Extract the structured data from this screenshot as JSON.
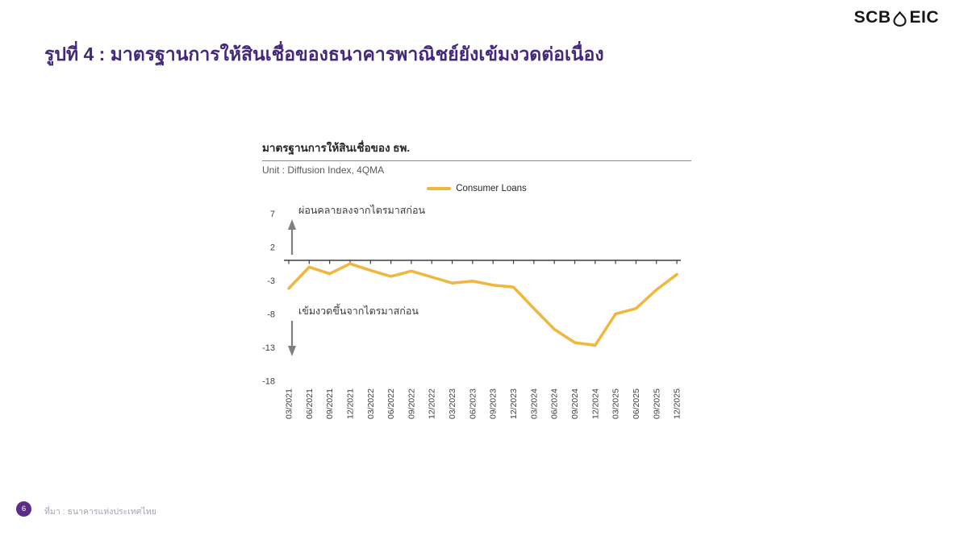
{
  "header": {
    "logo_left": "SCB",
    "logo_right": "EIC"
  },
  "figure_title": "รูปที่ 4 : มาตรฐานการให้สินเชื่อของธนาคารพาณิชย์ยังเข้มงวดต่อเนื่อง",
  "chart": {
    "title": "มาตรฐานการให้สินเชื่อของ ธพ.",
    "unit": "Unit : Diffusion Index, 4QMA",
    "legend_label": "Consumer Loans",
    "annotation_up": "ผ่อนคลายลงจากไตรมาสก่อน",
    "annotation_down": "เข้มงวดขึ้นจากไตรมาสก่อน",
    "line_color": "#F0B63E",
    "axis_color": "#3f3f3f",
    "arrow_color": "#7f7f7f"
  },
  "chart_data": {
    "type": "line",
    "title": "มาตรฐานการให้สินเชื่อของ ธพ.",
    "unit": "Unit : Diffusion Index, 4QMA",
    "categories": [
      "03/2021",
      "06/2021",
      "09/2021",
      "12/2021",
      "03/2022",
      "06/2022",
      "09/2022",
      "12/2022",
      "03/2023",
      "06/2023",
      "09/2023",
      "12/2023",
      "03/2024",
      "06/2024",
      "09/2024",
      "12/2024",
      "03/2025",
      "06/2025",
      "09/2025",
      "12/2025"
    ],
    "series": [
      {
        "name": "Consumer Loans",
        "color": "#F0B63E",
        "values": [
          -4.2,
          -1.0,
          -2.0,
          -0.5,
          -1.5,
          -2.4,
          -1.6,
          -2.5,
          -3.4,
          -3.1,
          -3.7,
          -4.0,
          -7.2,
          -10.3,
          -12.3,
          -12.7,
          -8.0,
          -7.2,
          -4.4,
          -2.1
        ]
      }
    ],
    "yticks": [
      7,
      2,
      -3,
      -8,
      -13,
      -18
    ],
    "ylim": [
      -18,
      7
    ],
    "zero_axis_on_top": true,
    "grid": false,
    "legend_position": "top-center",
    "annotations": [
      {
        "text": "ผ่อนคลายลงจากไตรมาสก่อน",
        "meaning": "eased from previous quarter",
        "arrow": "up"
      },
      {
        "text": "เข้มงวดขึ้นจากไตรมาสก่อน",
        "meaning": "tightened from previous quarter",
        "arrow": "down"
      }
    ]
  },
  "footer": {
    "page_number": "6",
    "source": "ที่มา : ธนาคารแห่งประเทศไทย"
  }
}
